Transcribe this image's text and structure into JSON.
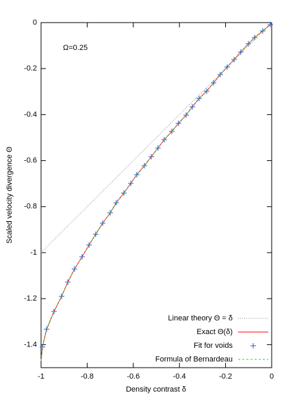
{
  "chart_data": {
    "type": "line",
    "xlabel": "Density contrast δ",
    "ylabel": "Scaled velocity divergence Θ",
    "annotation": "Ω=0.25",
    "x": [
      -1,
      -0.994,
      -0.976,
      -0.944,
      -0.911,
      -0.884,
      -0.855,
      -0.822,
      -0.792,
      -0.763,
      -0.733,
      -0.7,
      -0.674,
      -0.641,
      -0.611,
      -0.585,
      -0.552,
      -0.522,
      -0.493,
      -0.466,
      -0.433,
      -0.404,
      -0.371,
      -0.344,
      -0.315,
      -0.282,
      -0.252,
      -0.223,
      -0.193,
      -0.163,
      -0.134,
      -0.101,
      -0.074,
      -0.039,
      -0.006,
      0
    ],
    "series": [
      {
        "name": "Linear theory Θ = δ",
        "color": "#888888",
        "style": "dotted",
        "values": [
          -1,
          -0.994,
          -0.976,
          -0.944,
          -0.911,
          -0.884,
          -0.855,
          -0.822,
          -0.792,
          -0.763,
          -0.733,
          -0.7,
          -0.674,
          -0.641,
          -0.611,
          -0.585,
          -0.552,
          -0.522,
          -0.493,
          -0.466,
          -0.433,
          -0.404,
          -0.371,
          -0.344,
          -0.315,
          -0.282,
          -0.252,
          -0.223,
          -0.193,
          -0.163,
          -0.134,
          -0.101,
          -0.074,
          -0.039,
          -0.006,
          0
        ]
      },
      {
        "name": "Exact Θ(δ)",
        "color": "#ff0000",
        "style": "solid",
        "values": [
          -1.47,
          -1.41,
          -1.333,
          -1.256,
          -1.19,
          -1.128,
          -1.071,
          -1.018,
          -0.967,
          -0.92,
          -0.872,
          -0.827,
          -0.783,
          -0.741,
          -0.699,
          -0.661,
          -0.622,
          -0.583,
          -0.545,
          -0.509,
          -0.473,
          -0.438,
          -0.402,
          -0.366,
          -0.33,
          -0.298,
          -0.262,
          -0.226,
          -0.193,
          -0.161,
          -0.128,
          -0.092,
          -0.065,
          -0.036,
          -0.009,
          0
        ]
      },
      {
        "name": "Fit for voids",
        "color": "#3355cc",
        "style": "points",
        "values": [
          null,
          -1.41,
          -1.333,
          -1.256,
          -1.19,
          -1.128,
          -1.071,
          -1.018,
          -0.967,
          -0.92,
          -0.872,
          -0.827,
          -0.783,
          -0.741,
          -0.699,
          -0.661,
          -0.622,
          -0.583,
          -0.545,
          -0.509,
          -0.473,
          -0.438,
          -0.402,
          -0.366,
          -0.33,
          -0.298,
          -0.262,
          -0.226,
          -0.193,
          -0.161,
          -0.128,
          -0.092,
          -0.065,
          -0.036,
          -0.009,
          null
        ]
      },
      {
        "name": "Formula of Bernardeau",
        "color": "#33cc33",
        "style": "dashed",
        "values": [
          -1.47,
          -1.41,
          -1.333,
          -1.256,
          -1.19,
          -1.128,
          -1.071,
          -1.018,
          -0.967,
          -0.92,
          -0.872,
          -0.827,
          -0.783,
          -0.741,
          -0.699,
          -0.661,
          -0.622,
          -0.583,
          -0.545,
          -0.509,
          -0.473,
          -0.438,
          -0.402,
          -0.366,
          -0.33,
          -0.298,
          -0.262,
          -0.226,
          -0.193,
          -0.161,
          -0.128,
          -0.092,
          -0.065,
          -0.036,
          -0.009,
          0
        ]
      }
    ],
    "xlim": [
      -1,
      0
    ],
    "xticks": [
      -1,
      -0.8,
      -0.6,
      -0.4,
      -0.2,
      0
    ],
    "ylim": [
      -1.5,
      0
    ],
    "yticks": [
      0,
      -0.2,
      -0.4,
      -0.6,
      -0.8,
      -1,
      -1.2,
      -1.4
    ],
    "legend": "bottom-right"
  }
}
